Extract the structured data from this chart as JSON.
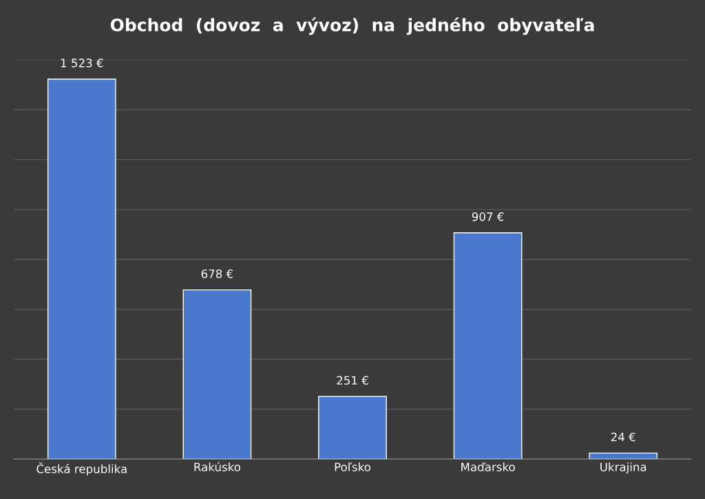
{
  "chart_data": {
    "type": "bar",
    "title": "Obchod  (dovoz  a  vývoz)  na  jedného  obyvateľa",
    "categories": [
      "Česká republika",
      "Rakúsko",
      "Poľsko",
      "Maďarsko",
      "Ukrajina"
    ],
    "values": [
      1523,
      678,
      251,
      907,
      24
    ],
    "value_labels": [
      "1 523 €",
      "678 €",
      "251 €",
      "907 €",
      "24 €"
    ],
    "color": "#4a78cc",
    "ylim": [
      0,
      1600
    ],
    "yticks": [
      {
        "value": 0,
        "label": null
      },
      {
        "value": 200,
        "label": null
      },
      {
        "value": 400,
        "label": null
      },
      {
        "value": 600,
        "label": null
      },
      {
        "value": 800,
        "label": null
      },
      {
        "value": 1000,
        "label": null
      },
      {
        "value": 1200,
        "label": null
      },
      {
        "value": 1400,
        "label": null
      },
      {
        "value": 1600,
        "label": null
      }
    ],
    "tick_labels": "x",
    "grid": "y"
  }
}
